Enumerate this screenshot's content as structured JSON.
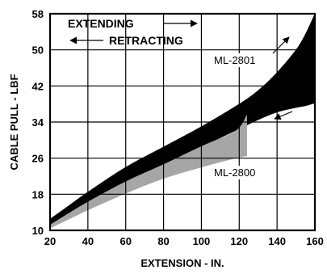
{
  "chart_data": {
    "type": "area",
    "xlabel": "EXTENSION - IN.",
    "ylabel": "CABLE PULL - LBF",
    "xlim": [
      20,
      160
    ],
    "ylim": [
      10,
      58
    ],
    "xticks": [
      20,
      40,
      60,
      80,
      100,
      120,
      140,
      160
    ],
    "yticks": [
      10,
      18,
      26,
      34,
      42,
      50,
      58
    ],
    "grid": true,
    "direction_labels": {
      "extending": "EXTENDING",
      "retracting": "RETRACTING"
    },
    "series": [
      {
        "name": "ML-2801",
        "color": "#000000",
        "x": [
          20,
          30,
          40,
          60,
          80,
          100,
          120,
          130,
          140,
          150,
          155,
          160
        ],
        "upper": [
          12.5,
          15.5,
          18.5,
          24,
          28.5,
          33,
          38,
          41,
          45,
          50,
          53.5,
          58
        ],
        "lower": [
          11,
          13.5,
          16,
          20.5,
          24.5,
          28.5,
          32.5,
          34.5,
          36.2,
          37.2,
          37.6,
          38.2
        ]
      },
      {
        "name": "ML-2800",
        "color": "#a6a6a6",
        "x": [
          20,
          30,
          40,
          60,
          80,
          100,
          118,
          124
        ],
        "upper": [
          11.2,
          13.8,
          16.3,
          20.8,
          24.6,
          28.6,
          32,
          35.5
        ],
        "lower": [
          10.5,
          12.5,
          14.5,
          18.2,
          21.5,
          24,
          26,
          26.5
        ]
      }
    ]
  }
}
